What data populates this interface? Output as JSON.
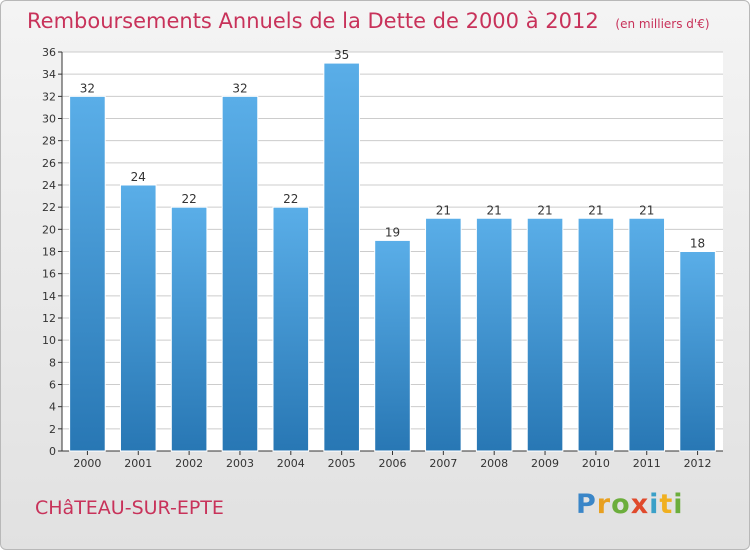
{
  "header": {
    "title": "Remboursements Annuels de la Dette de 2000 à 2012",
    "unit": "(en milliers d'€)"
  },
  "footer": {
    "town": "CHâTEAU-SUR-EPTE",
    "logo": "Proxiti"
  },
  "colors": {
    "title": "#c8325a",
    "bar_top": "#5aaee8",
    "bar_bottom": "#2877b4",
    "grid": "#cccccc",
    "axis": "#333333"
  },
  "chart_data": {
    "type": "bar",
    "title": "Remboursements Annuels de la Dette de 2000 à 2012",
    "xlabel": "",
    "ylabel": "",
    "categories": [
      "2000",
      "2001",
      "2002",
      "2003",
      "2004",
      "2005",
      "2006",
      "2007",
      "2008",
      "2009",
      "2010",
      "2011",
      "2012"
    ],
    "values": [
      32,
      24,
      22,
      32,
      22,
      35,
      19,
      21,
      21,
      21,
      21,
      21,
      18
    ],
    "ylim": [
      0,
      36
    ],
    "ytick_step": 2,
    "grid": true,
    "legend": "none",
    "data_labels": true
  }
}
